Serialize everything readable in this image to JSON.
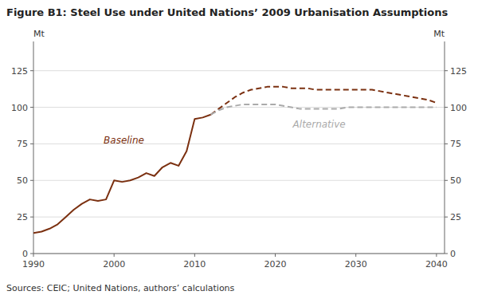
{
  "chart_data": {
    "type": "line",
    "title": "Figure B1: Steel Use under United Nations’ 2009 Urbanisation Assumptions",
    "source": "Sources:  CEIC; United Nations, authors’ calculations",
    "ylabel": "Mt",
    "y2label": "Mt",
    "xlim": [
      1990,
      2041
    ],
    "xticks": [
      1990,
      2000,
      2010,
      2020,
      2030,
      2040
    ],
    "ylim": [
      0,
      145
    ],
    "yticks": [
      0,
      25,
      50,
      75,
      100,
      125
    ],
    "y2lim": [
      0,
      145
    ],
    "y2ticks": [
      0,
      25,
      50,
      75,
      100,
      125
    ],
    "grid": true,
    "series": [
      {
        "color": "#7B3010",
        "line_style": "solid",
        "x": [
          1990,
          1991,
          1992,
          1993,
          1994,
          1995,
          1996,
          1997,
          1998,
          1999,
          2000,
          2001,
          2002,
          2003,
          2004,
          2005,
          2006,
          2007,
          2008,
          2009,
          2010,
          2011,
          2012
        ],
        "values": [
          14,
          15,
          17,
          20,
          25,
          30,
          34,
          37,
          36,
          37,
          50,
          49,
          50,
          52,
          55,
          53,
          59,
          62,
          60,
          70,
          92,
          93,
          95
        ]
      },
      {
        "color": "#7B3010",
        "line_style": "dashed",
        "x": [
          2012,
          2013,
          2014,
          2015,
          2016,
          2017,
          2018,
          2019,
          2020,
          2021,
          2022,
          2023,
          2024,
          2025,
          2026,
          2027,
          2028,
          2029,
          2030,
          2031,
          2032,
          2033,
          2034,
          2035,
          2036,
          2037,
          2038,
          2039,
          2040
        ],
        "values": [
          95,
          99,
          103,
          107,
          110,
          112,
          113,
          114,
          114,
          114,
          113,
          113,
          113,
          112,
          112,
          112,
          112,
          112,
          112,
          112,
          112,
          111,
          110,
          109,
          108,
          107,
          106,
          105,
          103
        ]
      },
      {
        "color": "#AAAAAA",
        "line_style": "dashed",
        "x": [
          2012,
          2013,
          2014,
          2015,
          2016,
          2017,
          2018,
          2019,
          2020,
          2021,
          2022,
          2023,
          2024,
          2025,
          2026,
          2027,
          2028,
          2029,
          2030,
          2031,
          2032,
          2033,
          2034,
          2035,
          2036,
          2037,
          2038,
          2039,
          2040
        ],
        "values": [
          95,
          98,
          100,
          101,
          102,
          102,
          102,
          102,
          102,
          101,
          100,
          99,
          99,
          99,
          99,
          99,
          99,
          100,
          100,
          100,
          100,
          100,
          100,
          100,
          100,
          100,
          100,
          100,
          100
        ]
      }
    ],
    "annotations": [
      {
        "text": "Baseline",
        "color": "#7B3010"
      },
      {
        "text": "Alternative",
        "color": "#AAAAAA"
      }
    ]
  }
}
